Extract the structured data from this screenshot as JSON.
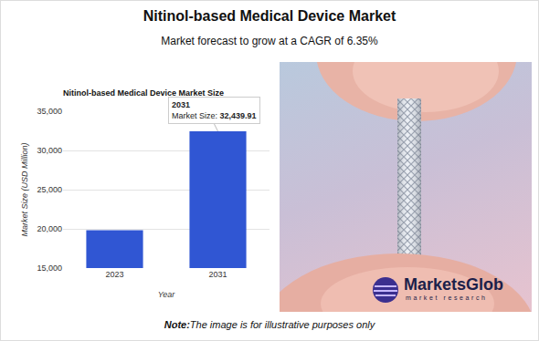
{
  "header": {
    "title": "Nitinol-based Medical Device Market",
    "subtitle": "Market forecast to grow at a CAGR of 6.35%"
  },
  "chart_data": {
    "type": "bar",
    "title": "Nitinol-based Medical Device Market Size",
    "x_label": "Year",
    "y_label": "Market Size (USD Million)",
    "categories": [
      "2023",
      "2031"
    ],
    "values": [
      19820,
      32439.91
    ],
    "color": "#3056d3",
    "ylim": [
      15000,
      35000
    ],
    "yticks": [
      {
        "value": 15000,
        "label": "15,000"
      },
      {
        "value": 20000,
        "label": "20,000"
      },
      {
        "value": 25000,
        "label": "25,000"
      },
      {
        "value": 30000,
        "label": "30,000"
      },
      {
        "value": 35000,
        "label": "35,000"
      }
    ],
    "grid": true,
    "annotations": [
      {
        "category": "2031",
        "heading": "2031",
        "label": "Market Size:",
        "value_label": "32,439.91"
      }
    ]
  },
  "image": {
    "logo": "MarketsGlob",
    "tagline": "market research"
  },
  "note": {
    "label": "Note:",
    "text": "The image is for illustrative purposes only"
  }
}
